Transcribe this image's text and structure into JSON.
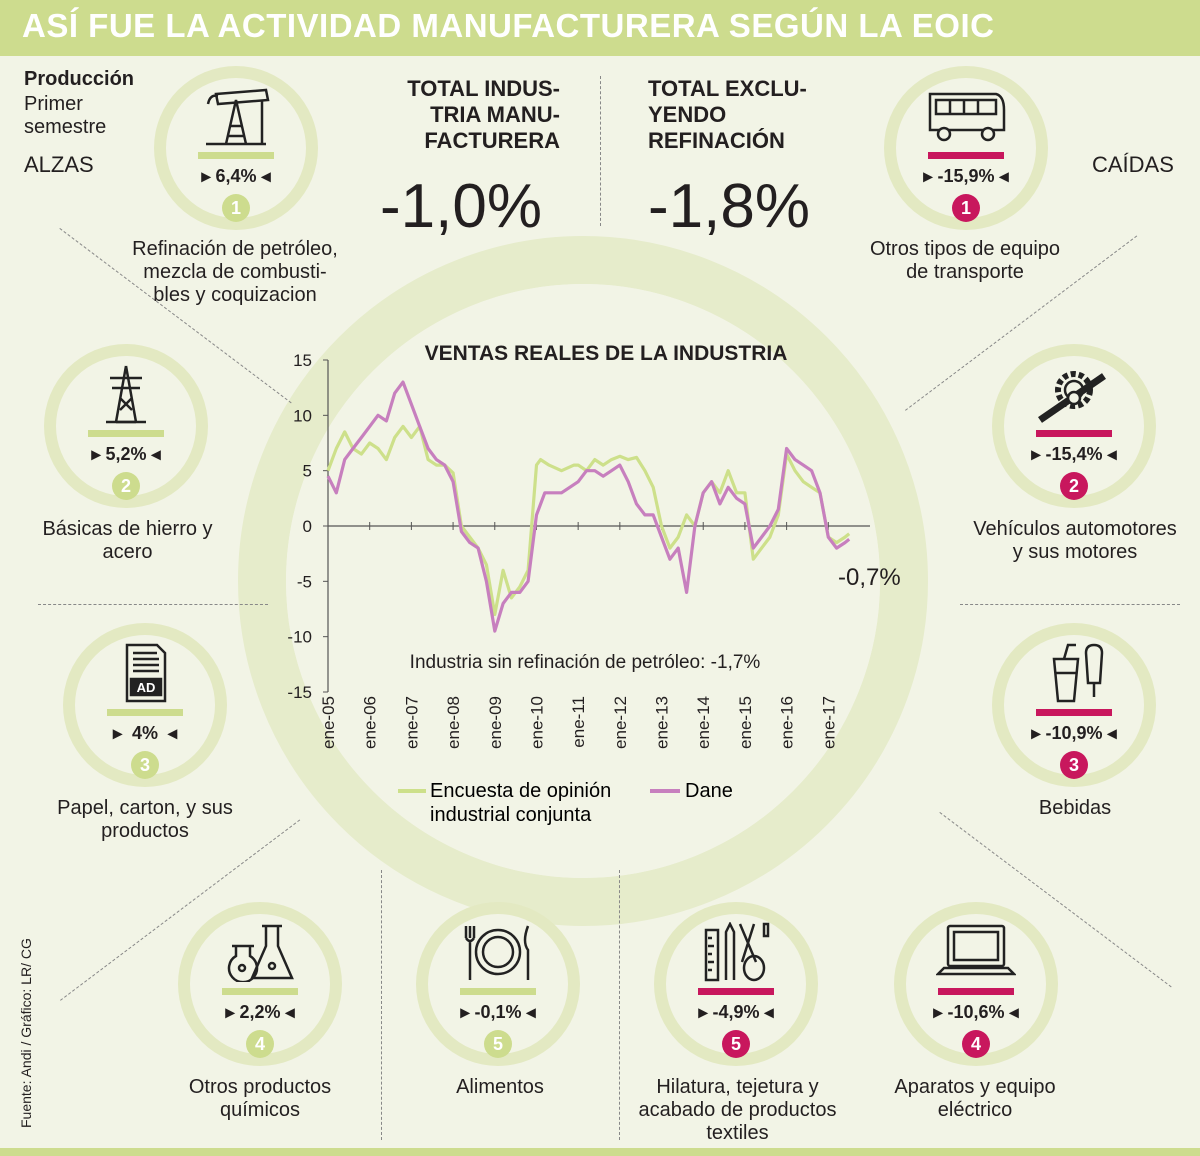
{
  "header": {
    "title": "ASÍ FUE LA ACTIVIDAD MANUFACTURERA SEGÚN LA EOIC"
  },
  "side_labels": {
    "produccion": "Producción",
    "primer_semestre": [
      "Primer",
      "semestre"
    ],
    "alzas": "ALZAS",
    "caidas": "CAÍDAS"
  },
  "totals": {
    "total_industria": {
      "title": [
        "TOTAL INDUS-",
        "TRIA MANU-",
        "FACTURERA"
      ],
      "value": "-1,0%"
    },
    "total_excluyendo": {
      "title": [
        "TOTAL EXCLU-",
        "YENDO",
        "REFINACIÓN"
      ],
      "value": "-1,8%"
    }
  },
  "alzas": [
    {
      "rank": "1",
      "pct": "6,4%",
      "icon": "oil-pump-icon",
      "label": [
        "Refinación de petróleo,",
        "mezcla de combusti-",
        "bles y coquizacion"
      ]
    },
    {
      "rank": "2",
      "pct": "5,2%",
      "icon": "power-tower-icon",
      "label": [
        "Básicas de hierro y",
        "acero"
      ]
    },
    {
      "rank": "3",
      "pct": "4%",
      "icon": "paper-document-icon",
      "label": [
        "Papel, carton, y sus",
        "productos"
      ]
    },
    {
      "rank": "4",
      "pct": "2,2%",
      "icon": "chemistry-flasks-icon",
      "label": [
        "Otros productos",
        "químicos"
      ]
    },
    {
      "rank": "5",
      "pct": "-0,1%",
      "icon": "plate-cutlery-icon",
      "label": [
        "Alimentos"
      ]
    }
  ],
  "caidas": [
    {
      "rank": "1",
      "pct": "-15,9%",
      "icon": "bus-icon",
      "label": [
        "Otros tipos de equipo",
        "de transporte"
      ]
    },
    {
      "rank": "2",
      "pct": "-15,4%",
      "icon": "gear-wrench-icon",
      "label": [
        "Vehículos automotores",
        "y sus motores"
      ]
    },
    {
      "rank": "3",
      "pct": "-10,9%",
      "icon": "drinks-icon",
      "label": [
        "Bebidas"
      ]
    },
    {
      "rank": "4",
      "pct": "-10,6%",
      "icon": "laptop-icon",
      "label": [
        "Aparatos y equipo",
        "eléctrico"
      ]
    },
    {
      "rank": "5",
      "pct": "-4,9%",
      "icon": "sewing-tools-icon",
      "label": [
        "Hilatura, tejetura y",
        "acabado de productos",
        "textiles"
      ]
    }
  ],
  "source": "Fuente: Andi / Gráfico: LR/ CG",
  "colors": {
    "header": "#cddc8e",
    "alza": "#cddc8e",
    "caida": "#c8175d",
    "eoic_line": "#cde08a",
    "dane_line": "#c77fbe"
  },
  "chart_data": {
    "type": "line",
    "title": "VENTAS REALES DE LA INDUSTRIA",
    "ylim": [
      -15,
      15
    ],
    "yticks": [
      "15",
      "10",
      "5",
      "0",
      "-5",
      "-10",
      "-15"
    ],
    "xlim": [
      2005,
      2018
    ],
    "xticks": [
      "ene-05",
      "ene-06",
      "ene-07",
      "ene-08",
      "ene-09",
      "ene-10",
      "ene-11",
      "ene-12",
      "ene-13",
      "ene-14",
      "ene-15",
      "ene-16",
      "ene-17"
    ],
    "annotation_end": "-0,7%",
    "annotation_note": "Industria sin refinación de petróleo: -1,7%",
    "series": [
      {
        "name": "Encuesta de opinión industrial conjunta",
        "legend": [
          "Encuesta de opinión",
          "industrial conjunta"
        ],
        "x": [
          2005.0,
          2005.2,
          2005.4,
          2005.6,
          2005.8,
          2006.0,
          2006.2,
          2006.4,
          2006.6,
          2006.8,
          2007.0,
          2007.2,
          2007.4,
          2007.6,
          2007.8,
          2008.0,
          2008.2,
          2008.4,
          2008.6,
          2008.8,
          2009.0,
          2009.2,
          2009.4,
          2009.6,
          2009.8,
          2010.0,
          2010.1,
          2010.3,
          2010.6,
          2010.9,
          2011.0,
          2011.2,
          2011.4,
          2011.6,
          2011.8,
          2012.0,
          2012.2,
          2012.4,
          2012.6,
          2012.8,
          2013.0,
          2013.2,
          2013.4,
          2013.6,
          2013.8,
          2014.0,
          2014.2,
          2014.4,
          2014.6,
          2014.8,
          2015.0,
          2015.2,
          2015.4,
          2015.6,
          2015.8,
          2016.0,
          2016.2,
          2016.4,
          2016.6,
          2016.8,
          2017.0,
          2017.2,
          2017.4,
          2017.5
        ],
        "y": [
          5,
          7,
          8.5,
          7,
          6.5,
          7.5,
          7,
          6,
          8,
          9,
          8,
          9,
          6,
          5.5,
          5.5,
          4.8,
          0,
          -1,
          -2,
          -3.5,
          -8,
          -4,
          -6.5,
          -5.5,
          -4,
          5.5,
          6,
          5.5,
          5,
          5.5,
          5.5,
          5,
          6,
          5.5,
          6,
          6.3,
          6,
          6.2,
          5,
          3.5,
          0,
          -2,
          -1,
          1,
          0,
          3,
          4,
          3,
          5,
          3,
          3,
          -3,
          -2,
          -1,
          1,
          6.5,
          5,
          4,
          3.5,
          3,
          -1,
          -1.5,
          -1,
          -0.7
        ]
      },
      {
        "name": "Dane",
        "legend": [
          "Dane"
        ],
        "x": [
          2005.0,
          2005.2,
          2005.4,
          2005.6,
          2005.8,
          2006.0,
          2006.2,
          2006.4,
          2006.6,
          2006.8,
          2007.0,
          2007.2,
          2007.4,
          2007.6,
          2007.8,
          2008.0,
          2008.2,
          2008.4,
          2008.6,
          2008.8,
          2009.0,
          2009.2,
          2009.4,
          2009.6,
          2009.8,
          2010.0,
          2010.2,
          2010.4,
          2010.6,
          2010.8,
          2011.0,
          2011.2,
          2011.4,
          2011.6,
          2011.8,
          2012.0,
          2012.2,
          2012.4,
          2012.6,
          2012.8,
          2013.0,
          2013.2,
          2013.4,
          2013.6,
          2013.8,
          2014.0,
          2014.2,
          2014.4,
          2014.6,
          2014.8,
          2015.0,
          2015.2,
          2015.4,
          2015.6,
          2015.8,
          2016.0,
          2016.2,
          2016.4,
          2016.6,
          2016.8,
          2017.0,
          2017.2,
          2017.4,
          2017.5
        ],
        "y": [
          4.5,
          3,
          6,
          7,
          8,
          9,
          10,
          9.5,
          12,
          13,
          11,
          9,
          7,
          6,
          5.5,
          4,
          -0.5,
          -1.5,
          -2,
          -5,
          -9.5,
          -7,
          -6,
          -6,
          -5,
          1,
          3,
          3,
          3,
          3.5,
          4,
          5,
          5,
          4.5,
          5,
          5.5,
          4,
          2,
          1,
          1,
          -1,
          -3,
          -2,
          -6,
          0,
          3,
          4,
          2,
          3.5,
          2.5,
          2,
          -2,
          -1,
          0,
          1.5,
          7,
          6,
          5.5,
          5,
          3,
          -1,
          -2,
          -1.5,
          -1.2
        ]
      }
    ]
  }
}
